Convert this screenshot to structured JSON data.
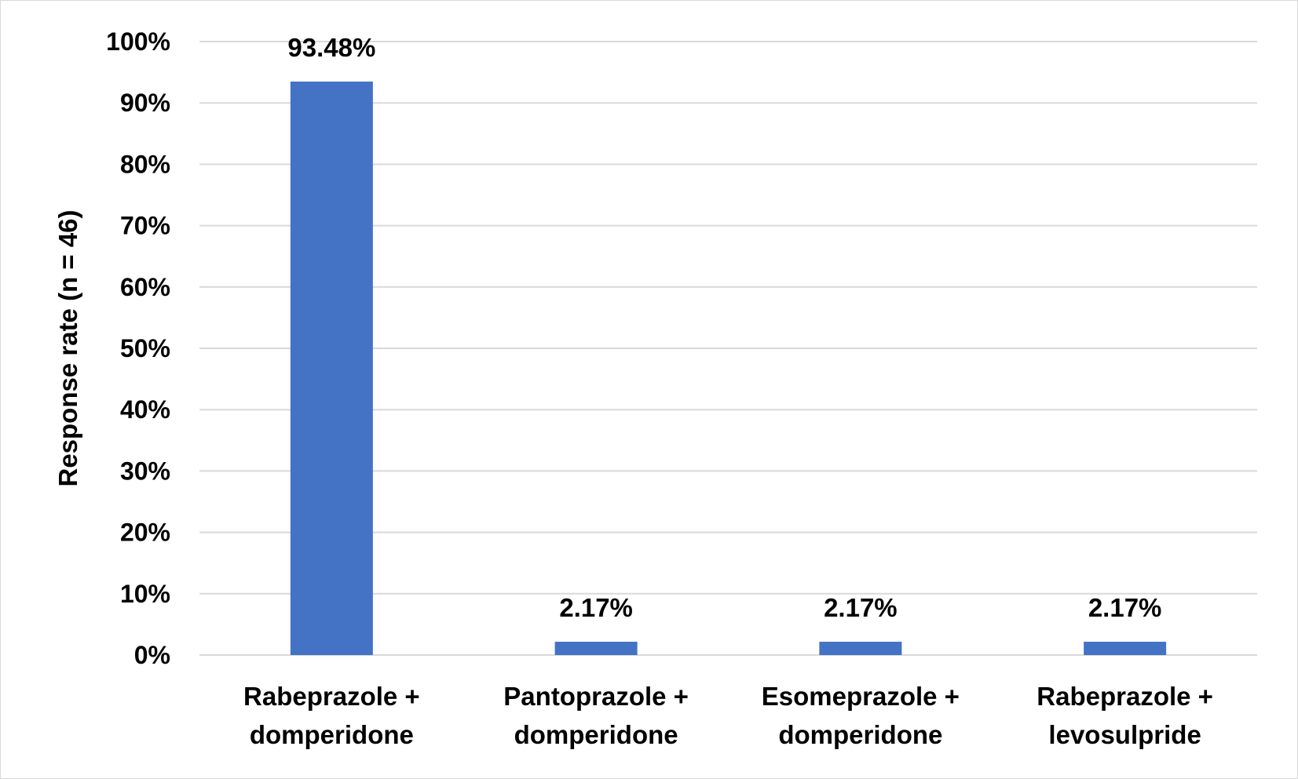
{
  "chart_data": {
    "type": "bar",
    "title": "",
    "xlabel": "",
    "ylabel": "Response rate (n = 46)",
    "ylim": [
      0,
      100
    ],
    "yticks": [
      0,
      10,
      20,
      30,
      40,
      50,
      60,
      70,
      80,
      90,
      100
    ],
    "ytick_labels": [
      "0%",
      "10%",
      "20%",
      "30%",
      "40%",
      "50%",
      "60%",
      "70%",
      "80%",
      "90%",
      "100%"
    ],
    "categories": [
      [
        "Rabeprazole +",
        "domperidone"
      ],
      [
        "Pantoprazole +",
        "domperidone"
      ],
      [
        "Esomeprazole +",
        "domperidone"
      ],
      [
        "Rabeprazole +",
        "levosulpride"
      ]
    ],
    "values": [
      93.48,
      2.17,
      2.17,
      2.17
    ],
    "data_labels": [
      "93.48%",
      "2.17%",
      "2.17%",
      "2.17%"
    ],
    "grid": true,
    "legend": "none",
    "bar_color": "#4472c4",
    "grid_color": "#d9d9d9"
  }
}
